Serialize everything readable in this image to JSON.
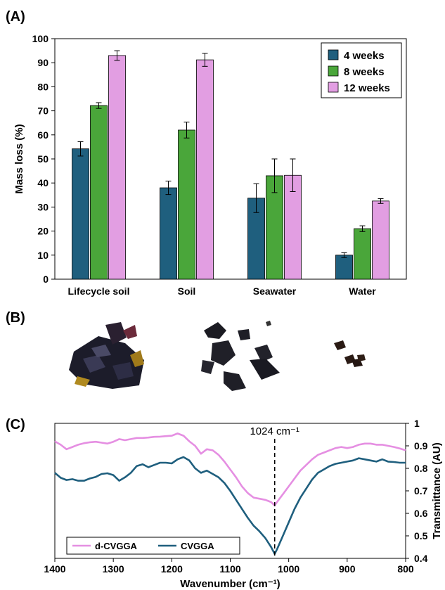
{
  "panels": {
    "a": "(A)",
    "b": "(B)",
    "c": "(C)"
  },
  "chart_data": [
    {
      "type": "bar",
      "panel": "(A)",
      "title": "",
      "xlabel": "",
      "ylabel": "Mass loss (%)",
      "ylim": [
        0,
        100
      ],
      "yticks": [
        0,
        10,
        20,
        30,
        40,
        50,
        60,
        70,
        80,
        90,
        100
      ],
      "categories": [
        "Lifecycle soil",
        "Soil",
        "Seawater",
        "Water"
      ],
      "series": [
        {
          "name": "4 weeks",
          "color": "#1f5f7e",
          "values": [
            54.2,
            38.0,
            33.7,
            10.0
          ],
          "errors": [
            3.0,
            2.8,
            6.0,
            1.0
          ]
        },
        {
          "name": "8 weeks",
          "color": "#4aa63a",
          "values": [
            72.2,
            62.0,
            43.0,
            21.0
          ],
          "errors": [
            1.2,
            3.3,
            7.0,
            1.2
          ]
        },
        {
          "name": "12 weeks",
          "color": "#e29ee2",
          "values": [
            93.0,
            91.2,
            43.2,
            32.5
          ],
          "errors": [
            2.0,
            2.7,
            6.8,
            1.0
          ]
        }
      ],
      "legend_position": "top-right",
      "grid": false
    },
    {
      "type": "line",
      "panel": "(C)",
      "title": "",
      "xlabel": "Wavenumber (cm⁻¹)",
      "ylabel": "Transmittance (AU)",
      "xlim": [
        1400,
        800
      ],
      "xticks": [
        1400,
        1300,
        1200,
        1100,
        1000,
        900,
        800
      ],
      "ylim": [
        0.4,
        1.0
      ],
      "yticks": [
        0.4,
        0.5,
        0.6,
        0.7,
        0.8,
        0.9,
        1
      ],
      "y_axis_side": "right",
      "annotation": {
        "text": "1024 cm⁻¹",
        "x": 1024
      },
      "legend_position": "bottom-left",
      "series": [
        {
          "name": "d-CVGGA",
          "color": "#e58fe2",
          "x": [
            1400,
            1390,
            1380,
            1370,
            1360,
            1350,
            1340,
            1330,
            1320,
            1310,
            1300,
            1290,
            1280,
            1270,
            1260,
            1250,
            1240,
            1230,
            1220,
            1210,
            1200,
            1190,
            1180,
            1170,
            1160,
            1150,
            1140,
            1130,
            1120,
            1110,
            1100,
            1090,
            1080,
            1070,
            1060,
            1050,
            1040,
            1030,
            1024,
            1020,
            1010,
            1000,
            990,
            980,
            970,
            960,
            950,
            940,
            930,
            920,
            910,
            900,
            890,
            880,
            870,
            860,
            850,
            840,
            830,
            820,
            810,
            800
          ],
          "y": [
            0.92,
            0.905,
            0.885,
            0.895,
            0.905,
            0.912,
            0.916,
            0.918,
            0.914,
            0.91,
            0.918,
            0.93,
            0.925,
            0.93,
            0.935,
            0.935,
            0.937,
            0.94,
            0.941,
            0.943,
            0.945,
            0.955,
            0.945,
            0.92,
            0.9,
            0.865,
            0.885,
            0.88,
            0.86,
            0.83,
            0.795,
            0.76,
            0.72,
            0.69,
            0.67,
            0.665,
            0.66,
            0.65,
            0.635,
            0.65,
            0.685,
            0.72,
            0.755,
            0.79,
            0.815,
            0.84,
            0.86,
            0.87,
            0.88,
            0.89,
            0.895,
            0.89,
            0.895,
            0.905,
            0.91,
            0.91,
            0.905,
            0.905,
            0.9,
            0.895,
            0.888,
            0.88
          ]
        },
        {
          "name": "CVGGA",
          "color": "#1f5f7e",
          "x": [
            1400,
            1390,
            1380,
            1370,
            1360,
            1350,
            1340,
            1330,
            1320,
            1310,
            1300,
            1290,
            1280,
            1270,
            1260,
            1250,
            1240,
            1230,
            1220,
            1210,
            1200,
            1190,
            1180,
            1170,
            1160,
            1150,
            1140,
            1130,
            1120,
            1110,
            1100,
            1090,
            1080,
            1070,
            1060,
            1050,
            1040,
            1030,
            1024,
            1020,
            1010,
            1000,
            990,
            980,
            970,
            960,
            950,
            940,
            930,
            920,
            910,
            900,
            890,
            880,
            870,
            860,
            850,
            840,
            830,
            820,
            810,
            800
          ],
          "y": [
            0.78,
            0.758,
            0.748,
            0.752,
            0.745,
            0.745,
            0.755,
            0.762,
            0.775,
            0.778,
            0.77,
            0.745,
            0.76,
            0.78,
            0.81,
            0.818,
            0.805,
            0.815,
            0.825,
            0.825,
            0.822,
            0.84,
            0.85,
            0.835,
            0.8,
            0.78,
            0.79,
            0.775,
            0.76,
            0.735,
            0.7,
            0.66,
            0.62,
            0.58,
            0.545,
            0.52,
            0.49,
            0.45,
            0.42,
            0.44,
            0.5,
            0.56,
            0.62,
            0.67,
            0.71,
            0.75,
            0.78,
            0.795,
            0.81,
            0.82,
            0.825,
            0.83,
            0.835,
            0.845,
            0.84,
            0.835,
            0.83,
            0.84,
            0.83,
            0.828,
            0.825,
            0.825
          ]
        }
      ]
    }
  ],
  "photos": {
    "sample_icons": [
      "sample-photo-1",
      "sample-photo-2",
      "sample-photo-3"
    ]
  }
}
